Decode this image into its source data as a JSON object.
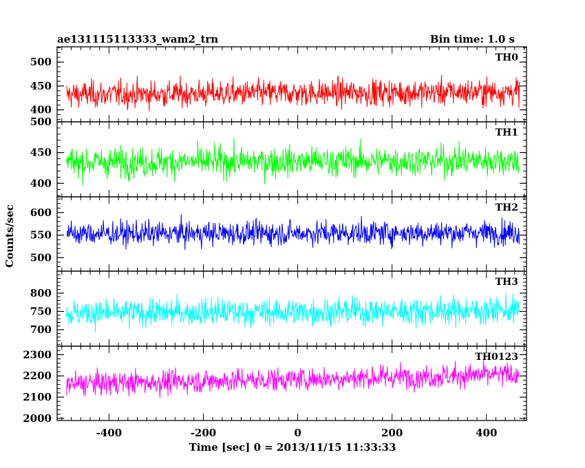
{
  "header": {
    "left": "ae131115113333_wam2_trn",
    "right": "Bin time: 1.0 s"
  },
  "chart_data": {
    "type": "line",
    "xlabel": "Time [sec] 0 = 2013/11/15 11:33:33",
    "ylabel": "Counts/sec",
    "xlim": [
      -510,
      485
    ],
    "xticks": [
      -400,
      -200,
      0,
      200,
      400
    ],
    "x_range_of_data": [
      -490,
      470
    ],
    "bin_time_s": 1.0,
    "grid": false,
    "legend": "none",
    "panels": [
      {
        "name": "TH0",
        "color": "#ff0000",
        "ylim": [
          375,
          532
        ],
        "yticks": [
          400,
          450,
          500
        ],
        "mean": 432,
        "noise_sd": 23,
        "trend": [
          0,
          6
        ]
      },
      {
        "name": "TH1",
        "color": "#00ff00",
        "ylim": [
          378,
          500
        ],
        "yticks": [
          400,
          450,
          500
        ],
        "mean": 434,
        "noise_sd": 20,
        "trend": [
          0,
          3
        ]
      },
      {
        "name": "TH2",
        "color": "#0000ff",
        "ylim": [
          470,
          635
        ],
        "yticks": [
          500,
          550,
          600
        ],
        "mean": 553,
        "noise_sd": 22,
        "trend": [
          0,
          3
        ]
      },
      {
        "name": "TH3",
        "color": "#00ffff",
        "ylim": [
          655,
          860
        ],
        "yticks": [
          700,
          750,
          800
        ],
        "mean": 745,
        "noise_sd": 31,
        "trend": [
          0,
          8
        ]
      },
      {
        "name": "TH0123",
        "color": "#ff00ff",
        "ylim": [
          1990,
          2340
        ],
        "yticks": [
          2000,
          2100,
          2200,
          2300
        ],
        "mean": 2162,
        "noise_sd": 46,
        "trend": [
          0,
          45
        ]
      }
    ]
  }
}
